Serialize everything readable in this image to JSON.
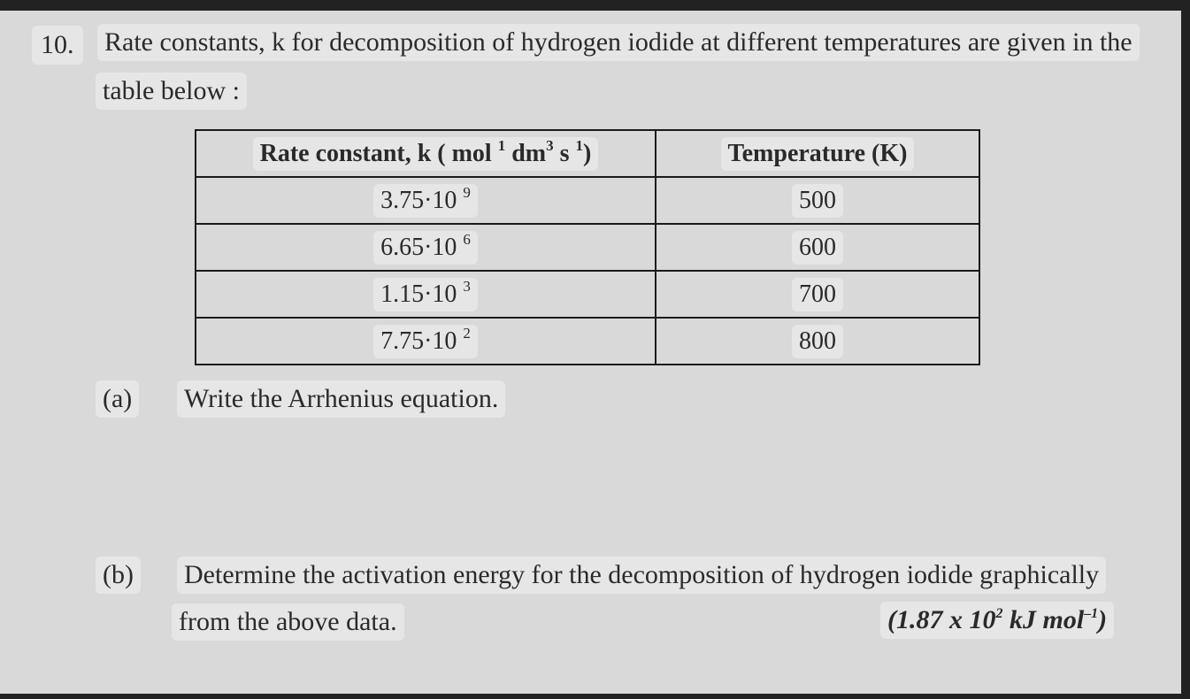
{
  "question": {
    "number": "10.",
    "text_line1": "Rate constants, k for decomposition of hydrogen iodide at different temperatures are given in the",
    "text_line2": "table below :"
  },
  "table": {
    "header_rate": "Rate constant, k ( mol",
    "header_rate_sup1": "1",
    "header_rate_mid": " dm",
    "header_rate_sup2": "3",
    "header_rate_s": " s",
    "header_rate_sup3": "1",
    "header_rate_end": ")",
    "header_temp": "Temperature (K)",
    "rows": [
      {
        "k_base": "3.75·10",
        "k_exp": "9",
        "temp": "500"
      },
      {
        "k_base": "6.65·10",
        "k_exp": "6",
        "temp": "600"
      },
      {
        "k_base": "1.15·10",
        "k_exp": "3",
        "temp": "700"
      },
      {
        "k_base": "7.75·10",
        "k_exp": "2",
        "temp": "800"
      }
    ]
  },
  "part_a": {
    "label": "(a)",
    "text": "Write the Arrhenius equation."
  },
  "part_b": {
    "label": "(b)",
    "text_line1": "Determine the activation energy for the decomposition of  hydrogen iodide graphically",
    "text_line2": "from the above data.",
    "answer_pre": "(1.87 x 10",
    "answer_sup1": "2",
    "answer_mid": " kJ mol",
    "answer_sup2": "–1",
    "answer_end": ")"
  }
}
